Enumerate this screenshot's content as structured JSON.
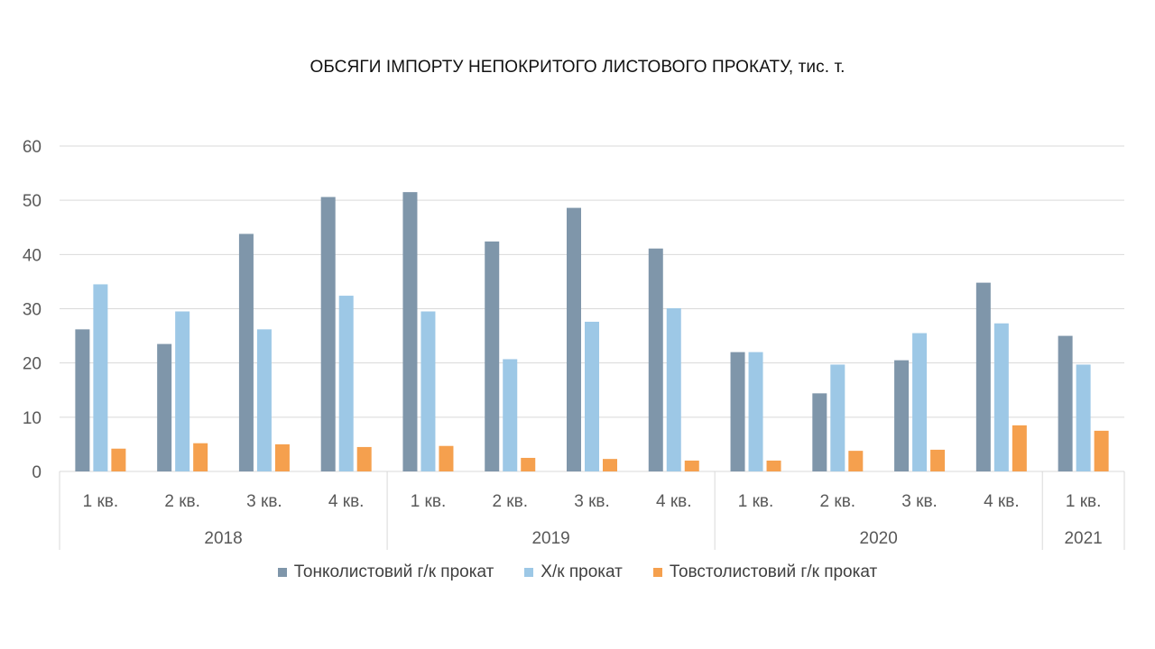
{
  "chart_data": {
    "type": "bar",
    "title": "ОБСЯГИ ІМПОРТУ НЕПОКРИТОГО ЛИСТОВОГО ПРОКАТУ, тис. т.",
    "xlabel": "",
    "ylabel": "",
    "ylim": [
      0,
      60
    ],
    "yticks": [
      0,
      10,
      20,
      30,
      40,
      50,
      60
    ],
    "grid": true,
    "legend_position": "bottom",
    "groups": [
      {
        "label": "2018",
        "categories": [
          "1 кв.",
          "2 кв.",
          "3 кв.",
          "4 кв."
        ]
      },
      {
        "label": "2019",
        "categories": [
          "1 кв.",
          "2 кв.",
          "3 кв.",
          "4 кв."
        ]
      },
      {
        "label": "2020",
        "categories": [
          "1 кв.",
          "2 кв.",
          "3 кв.",
          "4 кв."
        ]
      },
      {
        "label": "2021",
        "categories": [
          "1 кв."
        ]
      }
    ],
    "categories": [
      "1 кв.",
      "2 кв.",
      "3 кв.",
      "4 кв.",
      "1 кв.",
      "2 кв.",
      "3 кв.",
      "4 кв.",
      "1 кв.",
      "2 кв.",
      "3 кв.",
      "4 кв.",
      "1 кв."
    ],
    "series": [
      {
        "name": "Тонколистовий г/к прокат",
        "color": "#7f96aa",
        "values": [
          26.2,
          23.5,
          43.8,
          50.6,
          51.5,
          42.4,
          48.6,
          41.1,
          22,
          14.4,
          20.5,
          34.8,
          25
        ]
      },
      {
        "name": "Х/к прокат",
        "color": "#9dc8e6",
        "values": [
          34.5,
          29.5,
          26.2,
          32.4,
          29.5,
          20.7,
          27.6,
          30.1,
          22,
          19.7,
          25.5,
          27.3,
          19.7
        ]
      },
      {
        "name": "Товстолистовий г/к прокат",
        "color": "#f5a04e",
        "values": [
          4.2,
          5.2,
          5,
          4.5,
          4.7,
          2.5,
          2.3,
          2,
          2,
          3.8,
          4,
          8.5,
          7.5
        ]
      }
    ]
  }
}
